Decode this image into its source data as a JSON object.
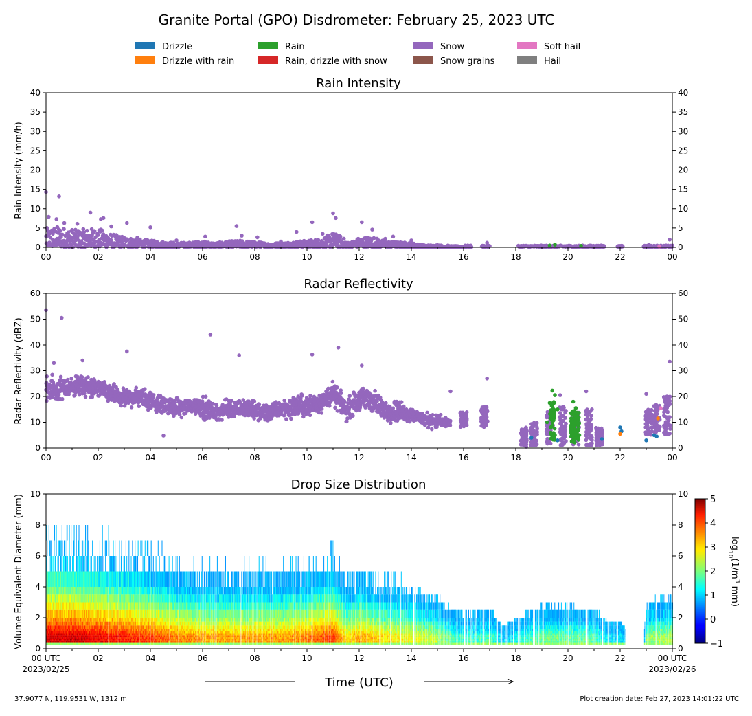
{
  "title": "Granite Portal (GPO) Disdrometer: February 25, 2023 UTC",
  "legend": [
    {
      "label": "Drizzle",
      "color": "#1f77b4"
    },
    {
      "label": "Drizzle with rain",
      "color": "#ff7f0e"
    },
    {
      "label": "Rain",
      "color": "#2ca02c"
    },
    {
      "label": "Rain, drizzle with snow",
      "color": "#d62728"
    },
    {
      "label": "Snow",
      "color": "#9467bd"
    },
    {
      "label": "Snow grains",
      "color": "#8c564b"
    },
    {
      "label": "Soft hail",
      "color": "#e377c2"
    },
    {
      "label": "Hail",
      "color": "#7f7f7f"
    }
  ],
  "x_ticks": [
    "00",
    "02",
    "04",
    "06",
    "08",
    "10",
    "12",
    "14",
    "16",
    "18",
    "20",
    "22",
    "00"
  ],
  "x_first_tick": [
    "00 UTC",
    "2023/02/25"
  ],
  "x_last_tick": [
    "00 UTC",
    "2023/02/26"
  ],
  "xlabel": "Time (UTC)",
  "location": "37.9077 N, 119.9531 W, 1312 m",
  "creation_date": "Plot creation date: Feb 27, 2023 14:01:22 UTC",
  "colorbar": {
    "label_prefix": "log",
    "label_sub": "10",
    "label_mid": "(1/m",
    "label_sup": "3",
    "label_suffix": " mm)",
    "ticks": [
      "−1",
      "0",
      "1",
      "2",
      "3",
      "4",
      "5"
    ],
    "range": [
      -1,
      5
    ],
    "colormap": "jet"
  },
  "chart_data": [
    {
      "type": "scatter",
      "title": "Rain Intensity",
      "ylabel": "Rain Intensity (mm/h)",
      "xlim": [
        0,
        24
      ],
      "ylim": [
        0,
        40
      ],
      "y_ticks": [
        "0",
        "5",
        "10",
        "15",
        "20",
        "25",
        "30",
        "35",
        "40"
      ],
      "x_unit": "hours UTC",
      "series": [
        {
          "name": "Snow",
          "color": "#9467bd",
          "points": [
            [
              0.0,
              14.3
            ],
            [
              0.5,
              13.2
            ],
            [
              0.1,
              7.9
            ],
            [
              0.4,
              7.3
            ],
            [
              0.7,
              6.3
            ],
            [
              1.2,
              6.1
            ],
            [
              1.7,
              9.0
            ],
            [
              2.1,
              7.3
            ],
            [
              2.2,
              7.6
            ],
            [
              2.5,
              5.4
            ],
            [
              3.1,
              6.3
            ],
            [
              4.0,
              5.2
            ],
            [
              6.1,
              2.8
            ],
            [
              7.3,
              5.5
            ],
            [
              7.5,
              3.0
            ],
            [
              9.6,
              4.0
            ],
            [
              10.2,
              6.5
            ],
            [
              10.6,
              3.5
            ],
            [
              11.0,
              8.8
            ],
            [
              11.1,
              7.6
            ],
            [
              12.1,
              6.5
            ],
            [
              12.5,
              4.6
            ],
            [
              13.3,
              2.8
            ],
            [
              14.0,
              1.8
            ],
            [
              16.9,
              1.2
            ],
            [
              23.9,
              2.0
            ],
            [
              1.0,
              4.5
            ],
            [
              3.5,
              2.5
            ],
            [
              5.0,
              1.8
            ],
            [
              8.1,
              2.6
            ],
            [
              9.0,
              1.5
            ],
            [
              13.0,
              2.2
            ],
            [
              15.0,
              0.6
            ],
            [
              15.4,
              0.5
            ],
            [
              16.1,
              0.3
            ],
            [
              18.6,
              0.3
            ],
            [
              19.2,
              0.4
            ],
            [
              20.8,
              0.4
            ],
            [
              21.2,
              0.3
            ],
            [
              22.0,
              0.4
            ],
            [
              23.1,
              0.6
            ],
            [
              23.3,
              0.4
            ]
          ]
        },
        {
          "name": "Rain",
          "color": "#2ca02c",
          "points": [
            [
              19.3,
              0.5
            ],
            [
              19.5,
              0.7
            ],
            [
              20.5,
              0.4
            ]
          ]
        },
        {
          "name": "Soft hail",
          "color": "#e377c2",
          "points": [
            [
              23.5,
              0.2
            ]
          ]
        }
      ],
      "envelope": [
        [
          0.0,
          5.0
        ],
        [
          0.5,
          5.5
        ],
        [
          1.0,
          4.5
        ],
        [
          1.5,
          4.8
        ],
        [
          2.0,
          5.0
        ],
        [
          2.5,
          3.5
        ],
        [
          3.0,
          2.8
        ],
        [
          3.5,
          2.2
        ],
        [
          4.0,
          1.8
        ],
        [
          4.5,
          1.5
        ],
        [
          5.0,
          1.2
        ],
        [
          5.5,
          1.3
        ],
        [
          6.0,
          1.6
        ],
        [
          6.5,
          1.2
        ],
        [
          7.0,
          1.6
        ],
        [
          7.5,
          1.8
        ],
        [
          8.0,
          1.5
        ],
        [
          8.5,
          1.1
        ],
        [
          9.0,
          1.2
        ],
        [
          9.5,
          1.5
        ],
        [
          10.0,
          1.8
        ],
        [
          10.5,
          2.2
        ],
        [
          11.0,
          3.8
        ],
        [
          11.3,
          3.0
        ],
        [
          11.6,
          1.2
        ],
        [
          12.0,
          2.5
        ],
        [
          12.5,
          2.8
        ],
        [
          13.0,
          1.6
        ],
        [
          13.5,
          1.4
        ],
        [
          14.0,
          1.2
        ],
        [
          14.5,
          0.6
        ],
        [
          15.0,
          0.6
        ],
        [
          15.5,
          0.4
        ],
        [
          16.0,
          0.3
        ]
      ]
    },
    {
      "type": "scatter",
      "title": "Radar Reflectivity",
      "ylabel": "Radar Reflectivity (dBZ)",
      "xlim": [
        0,
        24
      ],
      "ylim": [
        0,
        60
      ],
      "y_ticks": [
        "0",
        "10",
        "20",
        "30",
        "40",
        "50",
        "60"
      ],
      "x_unit": "hours UTC",
      "series": [
        {
          "name": "Snow",
          "color": "#9467bd",
          "points": [
            [
              0.0,
              53.5
            ],
            [
              0.6,
              50.5
            ],
            [
              6.3,
              44.0
            ],
            [
              3.1,
              37.5
            ],
            [
              7.4,
              36.0
            ],
            [
              10.2,
              36.3
            ],
            [
              11.2,
              39.0
            ],
            [
              16.9,
              27.0
            ],
            [
              23.9,
              33.5
            ],
            [
              0.3,
              33.0
            ],
            [
              1.4,
              34.0
            ],
            [
              12.1,
              32.0
            ],
            [
              4.5,
              4.8
            ],
            [
              18.4,
              0.5
            ],
            [
              19.7,
              20.5
            ],
            [
              20.7,
              22.0
            ],
            [
              15.5,
              22.0
            ],
            [
              23.0,
              21.0
            ]
          ]
        },
        {
          "name": "Rain",
          "color": "#2ca02c",
          "points": [
            [
              19.4,
              22.3
            ],
            [
              19.5,
              20.5
            ],
            [
              19.3,
              17.5
            ],
            [
              19.6,
              15.0
            ],
            [
              20.2,
              18.0
            ],
            [
              20.3,
              15.5
            ],
            [
              20.4,
              11.0
            ],
            [
              19.2,
              10.0
            ],
            [
              20.1,
              8.0
            ],
            [
              19.5,
              5.0
            ]
          ]
        },
        {
          "name": "Drizzle",
          "color": "#1f77b4",
          "points": [
            [
              22.0,
              8.0
            ],
            [
              22.05,
              6.5
            ],
            [
              21.3,
              3.5
            ],
            [
              23.3,
              5.0
            ],
            [
              23.4,
              4.5
            ],
            [
              23.0,
              3.0
            ],
            [
              19.6,
              3.0
            ],
            [
              18.6,
              4.0
            ]
          ]
        },
        {
          "name": "Drizzle with rain",
          "color": "#ff7f0e",
          "points": [
            [
              23.45,
              11.5
            ],
            [
              22.0,
              5.5
            ]
          ]
        },
        {
          "name": "Soft hail",
          "color": "#e377c2",
          "points": [
            [
              23.55,
              15.5
            ]
          ]
        }
      ],
      "bands": [
        [
          0.0,
          16.0,
          30.0
        ],
        [
          0.5,
          16.0,
          29.0
        ],
        [
          1.0,
          19.0,
          29.0
        ],
        [
          1.5,
          18.0,
          30.0
        ],
        [
          2.0,
          18.0,
          28.0
        ],
        [
          2.5,
          16.0,
          26.0
        ],
        [
          3.0,
          14.0,
          24.0
        ],
        [
          3.5,
          15.0,
          25.0
        ],
        [
          4.0,
          13.0,
          24.0
        ],
        [
          4.5,
          12.0,
          21.0
        ],
        [
          5.0,
          11.0,
          20.0
        ],
        [
          5.5,
          12.0,
          21.0
        ],
        [
          6.0,
          10.0,
          22.0
        ],
        [
          6.5,
          9.0,
          18.0
        ],
        [
          7.0,
          10.0,
          21.0
        ],
        [
          7.5,
          11.0,
          20.0
        ],
        [
          8.0,
          9.0,
          20.0
        ],
        [
          8.5,
          9.0,
          18.0
        ],
        [
          9.0,
          10.0,
          20.0
        ],
        [
          9.5,
          10.0,
          22.0
        ],
        [
          10.0,
          11.0,
          22.0
        ],
        [
          10.5,
          12.0,
          23.0
        ],
        [
          11.0,
          15.0,
          27.0
        ],
        [
          11.5,
          9.0,
          20.0
        ],
        [
          12.0,
          13.0,
          25.0
        ],
        [
          12.5,
          12.0,
          25.0
        ],
        [
          13.0,
          9.0,
          20.0
        ],
        [
          13.5,
          9.0,
          20.0
        ],
        [
          14.0,
          9.0,
          17.0
        ],
        [
          14.5,
          7.0,
          15.0
        ],
        [
          15.0,
          7.0,
          14.0
        ],
        [
          15.5,
          7.0,
          12.0
        ]
      ],
      "clusters": [
        [
          16.0,
          8.0,
          14.0
        ],
        [
          16.8,
          8.0,
          16.0
        ],
        [
          18.3,
          1.0,
          8.0
        ],
        [
          18.7,
          1.0,
          10.0
        ],
        [
          19.3,
          1.0,
          14.0
        ],
        [
          19.8,
          1.0,
          16.0
        ],
        [
          20.3,
          1.0,
          14.0
        ],
        [
          20.8,
          1.0,
          15.0
        ],
        [
          21.2,
          1.0,
          8.0
        ],
        [
          23.1,
          5.0,
          15.0
        ],
        [
          23.4,
          6.0,
          17.0
        ],
        [
          23.8,
          5.0,
          20.0
        ]
      ]
    },
    {
      "type": "heatmap",
      "title": "Drop Size Distribution",
      "ylabel": "Volume Equivalent Diameter (mm)",
      "xlim": [
        0,
        24
      ],
      "ylim": [
        0,
        10
      ],
      "y_ticks": [
        "0",
        "2",
        "4",
        "6",
        "8",
        "10"
      ],
      "x_unit": "hours UTC",
      "z_unit": "log10(1/m^3 mm)",
      "activity": [
        [
          0.0,
          1.0
        ],
        [
          1.0,
          1.0
        ],
        [
          2.0,
          0.95
        ],
        [
          3.0,
          0.9
        ],
        [
          4.0,
          0.85
        ],
        [
          5.0,
          0.75
        ],
        [
          6.0,
          0.7
        ],
        [
          7.0,
          0.7
        ],
        [
          8.0,
          0.7
        ],
        [
          9.0,
          0.7
        ],
        [
          10.0,
          0.75
        ],
        [
          11.0,
          0.85
        ],
        [
          11.5,
          0.6
        ],
        [
          12.0,
          0.7
        ],
        [
          13.0,
          0.6
        ],
        [
          14.0,
          0.55
        ],
        [
          15.0,
          0.45
        ],
        [
          15.6,
          0.3
        ],
        [
          16.0,
          0.25
        ],
        [
          17.0,
          0.3
        ],
        [
          17.5,
          0.1
        ],
        [
          18.0,
          0.2
        ],
        [
          19.0,
          0.35
        ],
        [
          20.0,
          0.35
        ],
        [
          21.0,
          0.3
        ],
        [
          21.6,
          0.15
        ],
        [
          22.0,
          0.15
        ],
        [
          22.3,
          0.0
        ],
        [
          22.9,
          0.0
        ],
        [
          23.0,
          0.4
        ],
        [
          24.0,
          0.45
        ]
      ]
    }
  ]
}
